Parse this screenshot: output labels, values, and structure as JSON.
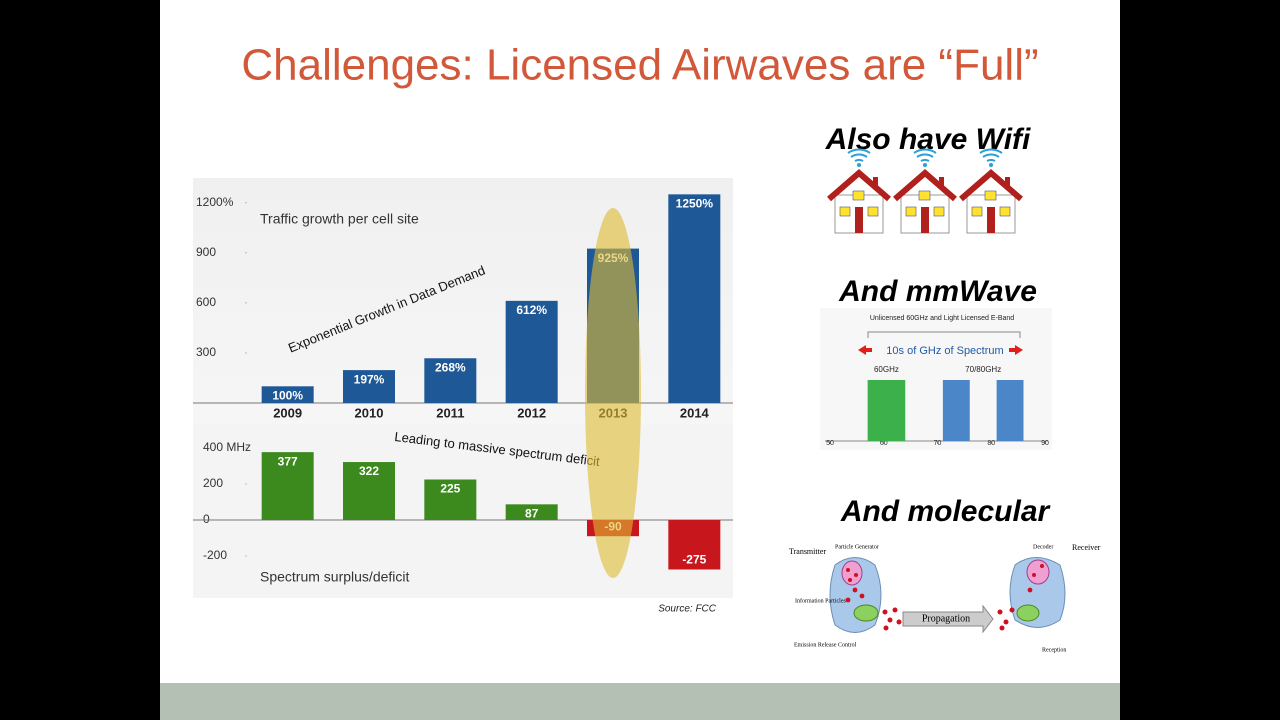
{
  "slide": {
    "title": "Challenges: Licensed Airwaves are “Full”",
    "source": "Source: FCC",
    "wifi_heading": "Also have Wifi",
    "mmwave_heading": "And mmWave",
    "molecular_heading": "And molecular",
    "molecular": {
      "transmitter": "Transmitter",
      "generator": "Particle Generator",
      "info": "Information Particles",
      "emission": "Emission Release Control",
      "propagation": "Propagation",
      "decoder": "Decoder",
      "receiver": "Receiver",
      "reception": "Reception"
    }
  },
  "chart_data": [
    {
      "type": "bar",
      "title": "Traffic growth per cell site",
      "annotation": "Exponential Growth in Data Demand",
      "categories": [
        "2009",
        "2010",
        "2011",
        "2012",
        "2013",
        "2014"
      ],
      "values": [
        100,
        197,
        268,
        612,
        925,
        1250
      ],
      "value_labels": [
        "100%",
        "197%",
        "268%",
        "612%",
        "925%",
        "1250%"
      ],
      "color": "#1f5896",
      "ylim": [
        0,
        1300
      ],
      "yticks": [
        300,
        600,
        900,
        {
          "value": 1200,
          "label": "1200%"
        }
      ]
    },
    {
      "type": "bar",
      "title": "Spectrum surplus/deficit",
      "annotation": "Leading to massive spectrum deficit",
      "values": [
        377,
        322,
        225,
        87,
        -90,
        -275
      ],
      "color": "#3c8a1e",
      "negative_color": "#c8161d",
      "ylim": [
        -400,
        500
      ],
      "yticks": [
        -200,
        0,
        200,
        {
          "value": 400,
          "label": "400 MHz"
        }
      ]
    },
    {
      "type": "range",
      "title": "Unlicensed 60GHz and Light Licensed E-Band",
      "annotation": "10s of GHz of Spectrum",
      "series": [
        {
          "name": "60GHz",
          "color": "#3cb04a",
          "ranges": [
            [
              57,
              64
            ]
          ]
        },
        {
          "name": "70/80GHz",
          "color": "#4a86c8",
          "ranges": [
            [
              71,
              76
            ],
            [
              81,
              86
            ]
          ]
        }
      ],
      "xlim": [
        50,
        90
      ],
      "xticks": [
        50,
        60,
        70,
        80,
        90
      ]
    }
  ]
}
